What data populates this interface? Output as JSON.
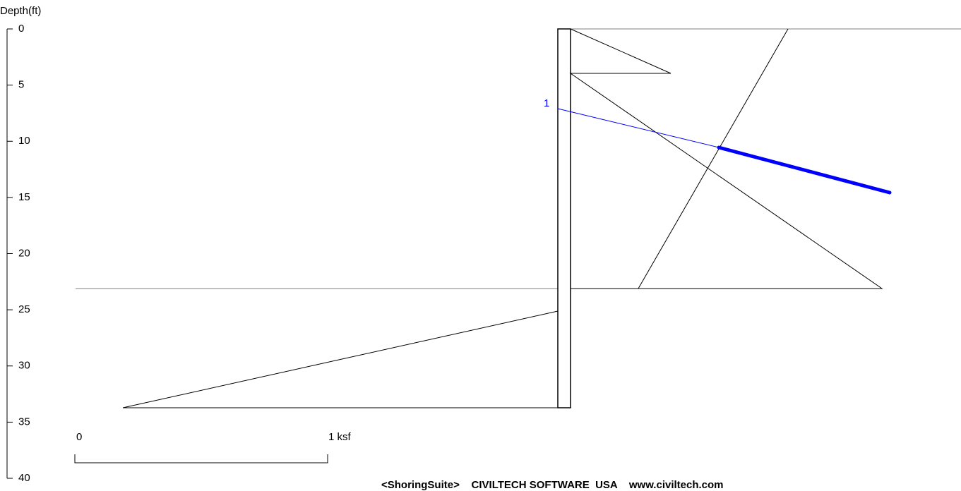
{
  "depth_axis": {
    "label": "Depth(ft)",
    "ticks": [
      0,
      5,
      10,
      15,
      20,
      25,
      30,
      35,
      40
    ]
  },
  "scale_bar": {
    "start_label": "0",
    "end_label": "1 ksf"
  },
  "anchor_label": "1",
  "footer": "<ShoringSuite>    CIVILTECH SOFTWARE  USA    www.civiltech.com"
}
